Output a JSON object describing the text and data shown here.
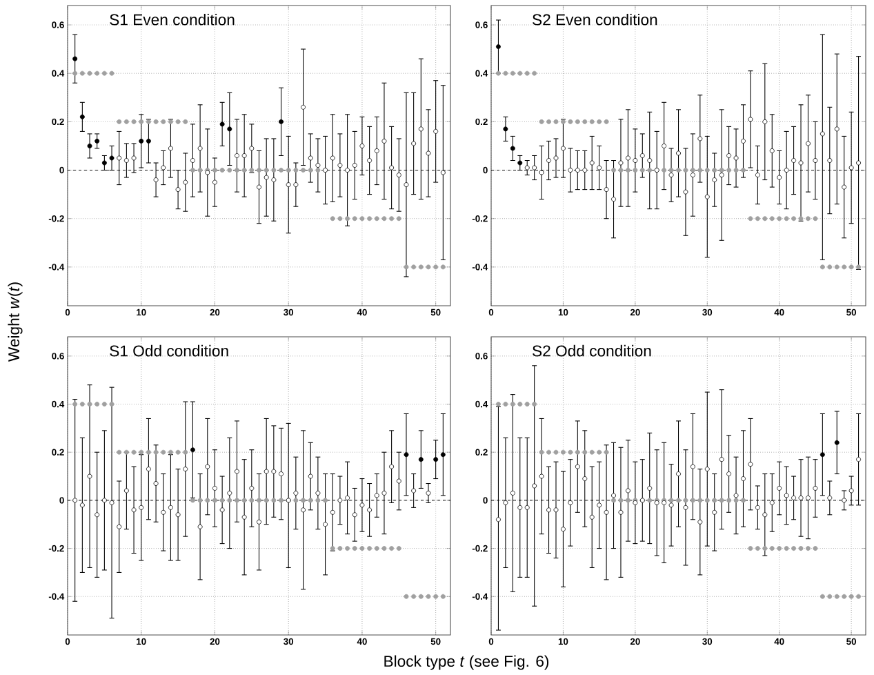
{
  "chart_data": [
    {
      "type": "scatter",
      "title": "S1 Even condition",
      "ylabel": "Weight *w*(*t*)",
      "xlim": [
        0,
        52
      ],
      "ylim": [
        -0.56,
        0.68
      ],
      "xticks": [
        0,
        10,
        20,
        30,
        40,
        50
      ],
      "yticks": [
        -0.4,
        -0.2,
        0,
        0.2,
        0.4,
        0.6
      ],
      "grid": true,
      "marker": "circle",
      "ref_lines": [
        {
          "axis": "y",
          "value": 0,
          "line_style": "dashed",
          "color": "#000000"
        }
      ],
      "x": [
        1,
        2,
        3,
        4,
        5,
        6,
        7,
        8,
        9,
        10,
        11,
        12,
        13,
        14,
        15,
        16,
        17,
        18,
        19,
        20,
        21,
        22,
        23,
        24,
        25,
        26,
        27,
        28,
        29,
        30,
        31,
        32,
        33,
        34,
        35,
        36,
        37,
        38,
        39,
        40,
        41,
        42,
        43,
        44,
        45,
        46,
        47,
        48,
        49,
        50,
        51
      ],
      "series": [
        {
          "type": "scatter",
          "color": "#a0a0a0",
          "values": [
            0.4,
            0.4,
            0.4,
            0.4,
            0.4,
            0.4,
            0.2,
            0.2,
            0.2,
            0.2,
            0.2,
            0.2,
            0.2,
            0.2,
            0.2,
            0.2,
            0,
            0,
            0,
            0,
            0,
            0,
            0,
            0,
            0,
            0,
            0,
            0,
            0,
            0,
            0,
            0,
            0,
            0,
            0,
            -0.2,
            -0.2,
            -0.2,
            -0.2,
            -0.2,
            -0.2,
            -0.2,
            -0.2,
            -0.2,
            -0.2,
            -0.4,
            -0.4,
            -0.4,
            -0.4,
            -0.4,
            -0.4
          ]
        },
        {
          "type": "scatter",
          "values": [
            0.46,
            0.22,
            0.1,
            0.12,
            0.03,
            0.05,
            0.05,
            0.04,
            0.05,
            0.12,
            0.12,
            -0.04,
            0.01,
            0.09,
            -0.08,
            -0.05,
            0.04,
            0.09,
            -0.01,
            -0.05,
            0.19,
            0.17,
            0.06,
            0.06,
            0.09,
            -0.07,
            -0.03,
            -0.04,
            0.2,
            -0.06,
            -0.06,
            0.26,
            0.05,
            0.02,
            0.0,
            0.05,
            0.02,
            0.0,
            0.02,
            0.1,
            0.04,
            0.08,
            0.12,
            0.01,
            -0.02,
            -0.06,
            0.11,
            0.17,
            0.07,
            0.16,
            -0.01
          ],
          "errors": [
            0.1,
            0.06,
            0.05,
            0.03,
            0.03,
            0.05,
            0.11,
            0.07,
            0.06,
            0.11,
            0.09,
            0.07,
            0.07,
            0.12,
            0.08,
            0.12,
            0.15,
            0.18,
            0.18,
            0.1,
            0.09,
            0.15,
            0.15,
            0.17,
            0.1,
            0.15,
            0.16,
            0.17,
            0.14,
            0.2,
            0.09,
            0.24,
            0.1,
            0.11,
            0.14,
            0.18,
            0.13,
            0.23,
            0.14,
            0.12,
            0.14,
            0.14,
            0.24,
            0.17,
            0.15,
            0.38,
            0.21,
            0.29,
            0.18,
            0.21,
            0.36
          ],
          "colors": [
            "#000000",
            "#000000",
            "#000000",
            "#000000",
            "#000000",
            "#000000",
            "#ffffff",
            "#ffffff",
            "#ffffff",
            "#000000",
            "#000000",
            "#ffffff",
            "#ffffff",
            "#ffffff",
            "#ffffff",
            "#ffffff",
            "#ffffff",
            "#ffffff",
            "#ffffff",
            "#ffffff",
            "#000000",
            "#000000",
            "#ffffff",
            "#ffffff",
            "#ffffff",
            "#ffffff",
            "#ffffff",
            "#ffffff",
            "#000000",
            "#ffffff",
            "#ffffff",
            "#ffffff",
            "#ffffff",
            "#ffffff",
            "#ffffff",
            "#ffffff",
            "#ffffff",
            "#ffffff",
            "#ffffff",
            "#ffffff",
            "#ffffff",
            "#ffffff",
            "#ffffff",
            "#ffffff",
            "#ffffff",
            "#ffffff",
            "#ffffff",
            "#ffffff",
            "#ffffff",
            "#ffffff",
            "#ffffff"
          ]
        }
      ]
    },
    {
      "type": "scatter",
      "title": "S2 Even condition",
      "xlim": [
        0,
        52
      ],
      "ylim": [
        -0.56,
        0.68
      ],
      "xticks": [
        0,
        10,
        20,
        30,
        40,
        50
      ],
      "yticks": [
        -0.4,
        -0.2,
        0,
        0.2,
        0.4,
        0.6
      ],
      "grid": true,
      "marker": "circle",
      "ref_lines": [
        {
          "axis": "y",
          "value": 0,
          "line_style": "dashed",
          "color": "#000000"
        }
      ],
      "x": [
        1,
        2,
        3,
        4,
        5,
        6,
        7,
        8,
        9,
        10,
        11,
        12,
        13,
        14,
        15,
        16,
        17,
        18,
        19,
        20,
        21,
        22,
        23,
        24,
        25,
        26,
        27,
        28,
        29,
        30,
        31,
        32,
        33,
        34,
        35,
        36,
        37,
        38,
        39,
        40,
        41,
        42,
        43,
        44,
        45,
        46,
        47,
        48,
        49,
        50,
        51
      ],
      "series": [
        {
          "type": "scatter",
          "color": "#a0a0a0",
          "values": [
            0.4,
            0.4,
            0.4,
            0.4,
            0.4,
            0.4,
            0.2,
            0.2,
            0.2,
            0.2,
            0.2,
            0.2,
            0.2,
            0.2,
            0.2,
            0.2,
            0,
            0,
            0,
            0,
            0,
            0,
            0,
            0,
            0,
            0,
            0,
            0,
            0,
            0,
            0,
            0,
            0,
            0,
            0,
            -0.2,
            -0.2,
            -0.2,
            -0.2,
            -0.2,
            -0.2,
            -0.2,
            -0.2,
            -0.2,
            -0.2,
            -0.4,
            -0.4,
            -0.4,
            -0.4,
            -0.4,
            -0.4
          ]
        },
        {
          "type": "scatter",
          "values": [
            0.51,
            0.17,
            0.09,
            0.03,
            0.01,
            0.01,
            -0.01,
            0.04,
            0.05,
            0.09,
            0,
            0,
            0,
            0.03,
            0.01,
            -0.08,
            -0.12,
            0.03,
            0.05,
            0.04,
            0.06,
            0.04,
            0,
            0.1,
            -0.02,
            0.07,
            -0.09,
            -0.02,
            0.13,
            -0.11,
            -0.04,
            -0.02,
            0.06,
            0.05,
            0.12,
            0.21,
            -0.02,
            0.2,
            0.08,
            -0.03,
            0,
            0.04,
            0.03,
            0.11,
            0.04,
            0.15,
            0.04,
            0.17,
            -0.07,
            0.01,
            0.03
          ],
          "errors": [
            0.11,
            0.05,
            0.05,
            0.03,
            0.03,
            0.05,
            0.11,
            0.08,
            0.08,
            0.12,
            0.09,
            0.08,
            0.08,
            0.11,
            0.09,
            0.12,
            0.16,
            0.18,
            0.2,
            0.13,
            0.09,
            0.2,
            0.16,
            0.18,
            0.11,
            0.18,
            0.18,
            0.17,
            0.18,
            0.25,
            0.11,
            0.27,
            0.12,
            0.12,
            0.15,
            0.2,
            0.12,
            0.24,
            0.15,
            0.11,
            0.16,
            0.14,
            0.24,
            0.2,
            0.16,
            [
              -0.37,
              0.56
            ],
            0.22,
            0.31,
            0.21,
            0.23,
            [
              -0.41,
              0.47
            ]
          ],
          "colors": [
            "#000000",
            "#000000",
            "#000000",
            "#000000",
            "#ffffff",
            "#ffffff",
            "#ffffff",
            "#ffffff",
            "#ffffff",
            "#ffffff",
            "#ffffff",
            "#ffffff",
            "#ffffff",
            "#ffffff",
            "#ffffff",
            "#ffffff",
            "#ffffff",
            "#ffffff",
            "#ffffff",
            "#ffffff",
            "#ffffff",
            "#ffffff",
            "#ffffff",
            "#ffffff",
            "#ffffff",
            "#ffffff",
            "#ffffff",
            "#ffffff",
            "#ffffff",
            "#ffffff",
            "#ffffff",
            "#ffffff",
            "#ffffff",
            "#ffffff",
            "#ffffff",
            "#ffffff",
            "#ffffff",
            "#ffffff",
            "#ffffff",
            "#ffffff",
            "#ffffff",
            "#ffffff",
            "#ffffff",
            "#ffffff",
            "#ffffff",
            "#ffffff",
            "#ffffff",
            "#ffffff",
            "#ffffff",
            "#ffffff",
            "#ffffff"
          ]
        }
      ]
    },
    {
      "type": "scatter",
      "title": "S1 Odd condition",
      "xlabel": "Block type *t* (see Fig. 6)",
      "xlim": [
        0,
        52
      ],
      "ylim": [
        -0.56,
        0.68
      ],
      "xticks": [
        0,
        10,
        20,
        30,
        40,
        50
      ],
      "yticks": [
        -0.4,
        -0.2,
        0,
        0.2,
        0.4,
        0.6
      ],
      "grid": true,
      "marker": "circle",
      "ref_lines": [
        {
          "axis": "y",
          "value": 0,
          "line_style": "dashed",
          "color": "#000000"
        }
      ],
      "x": [
        1,
        2,
        3,
        4,
        5,
        6,
        7,
        8,
        9,
        10,
        11,
        12,
        13,
        14,
        15,
        16,
        17,
        18,
        19,
        20,
        21,
        22,
        23,
        24,
        25,
        26,
        27,
        28,
        29,
        30,
        31,
        32,
        33,
        34,
        35,
        36,
        37,
        38,
        39,
        40,
        41,
        42,
        43,
        44,
        45,
        46,
        47,
        48,
        49,
        50,
        51
      ],
      "series": [
        {
          "type": "scatter",
          "color": "#a0a0a0",
          "values": [
            0.4,
            0.4,
            0.4,
            0.4,
            0.4,
            0.4,
            0.2,
            0.2,
            0.2,
            0.2,
            0.2,
            0.2,
            0.2,
            0.2,
            0.2,
            0.2,
            0,
            0,
            0,
            0,
            0,
            0,
            0,
            0,
            0,
            0,
            0,
            0,
            0,
            0,
            0,
            0,
            0,
            0,
            0,
            -0.2,
            -0.2,
            -0.2,
            -0.2,
            -0.2,
            -0.2,
            -0.2,
            -0.2,
            -0.2,
            -0.2,
            -0.4,
            -0.4,
            -0.4,
            -0.4,
            -0.4,
            -0.4
          ]
        },
        {
          "type": "scatter",
          "values": [
            0.0,
            -0.02,
            0.1,
            -0.06,
            0.0,
            -0.01,
            -0.11,
            0.04,
            -0.04,
            -0.03,
            0.13,
            0.07,
            -0.05,
            -0.03,
            -0.06,
            0.13,
            0.21,
            -0.11,
            0.14,
            0.05,
            -0.04,
            0.03,
            0.12,
            -0.07,
            0.05,
            -0.09,
            0.12,
            0.12,
            0.11,
            0.0,
            0.03,
            -0.04,
            0.1,
            0.03,
            -0.1,
            -0.05,
            0.0,
            0.01,
            -0.06,
            -0.02,
            -0.04,
            0.02,
            0.03,
            0.14,
            0.08,
            0.19,
            0.04,
            0.17,
            0.03,
            0.17,
            0.19
          ],
          "errors": [
            0.42,
            0.28,
            0.38,
            0.26,
            0.29,
            0.48,
            0.19,
            0.16,
            0.18,
            0.22,
            0.21,
            0.16,
            0.16,
            0.22,
            0.19,
            0.28,
            0.2,
            0.22,
            0.2,
            0.16,
            0.14,
            0.23,
            0.21,
            0.24,
            0.16,
            0.2,
            0.22,
            0.19,
            0.19,
            [
              -0.28,
              0.32
            ],
            0.15,
            [
              -0.37,
              0.29
            ],
            0.14,
            0.15,
            0.21,
            0.16,
            0.1,
            0.15,
            0.11,
            0.11,
            0.11,
            0.09,
            0.17,
            0.15,
            0.12,
            0.17,
            0.07,
            0.12,
            0.04,
            0.08,
            0.17
          ],
          "colors": [
            "#ffffff",
            "#ffffff",
            "#ffffff",
            "#ffffff",
            "#ffffff",
            "#ffffff",
            "#ffffff",
            "#ffffff",
            "#ffffff",
            "#ffffff",
            "#ffffff",
            "#ffffff",
            "#ffffff",
            "#ffffff",
            "#ffffff",
            "#ffffff",
            "#000000",
            "#ffffff",
            "#ffffff",
            "#ffffff",
            "#ffffff",
            "#ffffff",
            "#ffffff",
            "#ffffff",
            "#ffffff",
            "#ffffff",
            "#ffffff",
            "#ffffff",
            "#ffffff",
            "#ffffff",
            "#ffffff",
            "#ffffff",
            "#ffffff",
            "#ffffff",
            "#ffffff",
            "#ffffff",
            "#ffffff",
            "#ffffff",
            "#ffffff",
            "#ffffff",
            "#ffffff",
            "#ffffff",
            "#ffffff",
            "#ffffff",
            "#ffffff",
            "#000000",
            "#ffffff",
            "#000000",
            "#ffffff",
            "#000000",
            "#000000"
          ]
        }
      ]
    },
    {
      "type": "scatter",
      "title": "S2 Odd condition",
      "xlim": [
        0,
        52
      ],
      "ylim": [
        -0.56,
        0.68
      ],
      "xticks": [
        0,
        10,
        20,
        30,
        40,
        50
      ],
      "yticks": [
        -0.4,
        -0.2,
        0,
        0.2,
        0.4,
        0.6
      ],
      "grid": true,
      "marker": "circle",
      "ref_lines": [
        {
          "axis": "y",
          "value": 0,
          "line_style": "dashed",
          "color": "#000000"
        }
      ],
      "x": [
        1,
        2,
        3,
        4,
        5,
        6,
        7,
        8,
        9,
        10,
        11,
        12,
        13,
        14,
        15,
        16,
        17,
        18,
        19,
        20,
        21,
        22,
        23,
        24,
        25,
        26,
        27,
        28,
        29,
        30,
        31,
        32,
        33,
        34,
        35,
        36,
        37,
        38,
        39,
        40,
        41,
        42,
        43,
        44,
        45,
        46,
        47,
        48,
        49,
        50,
        51
      ],
      "series": [
        {
          "type": "scatter",
          "color": "#a0a0a0",
          "values": [
            0.4,
            0.4,
            0.4,
            0.4,
            0.4,
            0.4,
            0.2,
            0.2,
            0.2,
            0.2,
            0.2,
            0.2,
            0.2,
            0.2,
            0.2,
            0.2,
            0,
            0,
            0,
            0,
            0,
            0,
            0,
            0,
            0,
            0,
            0,
            0,
            0,
            0,
            0,
            0,
            0,
            0,
            0,
            -0.2,
            -0.2,
            -0.2,
            -0.2,
            -0.2,
            -0.2,
            -0.2,
            -0.2,
            -0.2,
            -0.2,
            -0.4,
            -0.4,
            -0.4,
            -0.4,
            -0.4,
            -0.4
          ]
        },
        {
          "type": "scatter",
          "values": [
            -0.08,
            -0.01,
            0.03,
            -0.03,
            -0.03,
            0.06,
            0.1,
            -0.04,
            -0.04,
            -0.12,
            -0.01,
            0.14,
            0.09,
            -0.07,
            -0.02,
            -0.05,
            0.02,
            -0.05,
            0.04,
            -0.01,
            0.0,
            0.05,
            -0.01,
            -0.01,
            -0.02,
            0.11,
            -0.03,
            0.14,
            -0.09,
            0.13,
            -0.05,
            0.17,
            0.11,
            0.02,
            0.09,
            0.15,
            -0.03,
            -0.06,
            -0.01,
            0.05,
            0.02,
            0.01,
            0.01,
            0.01,
            0.05,
            0.19,
            0.01,
            0.24,
            0.0,
            0.04,
            0.17
          ],
          "errors": [
            [
              -0.54,
              0.39
            ],
            0.27,
            0.41,
            0.29,
            0.29,
            0.5,
            0.24,
            0.18,
            0.2,
            0.24,
            0.18,
            0.19,
            0.2,
            0.21,
            0.18,
            0.28,
            0.22,
            0.27,
            0.21,
            0.17,
            0.17,
            0.23,
            0.22,
            0.25,
            0.17,
            0.22,
            0.24,
            0.22,
            0.22,
            0.32,
            0.16,
            0.29,
            0.16,
            0.16,
            0.2,
            0.19,
            0.09,
            0.17,
            0.12,
            0.11,
            0.12,
            0.09,
            0.16,
            0.17,
            0.12,
            0.17,
            0.07,
            0.13,
            0.04,
            0.06,
            0.19
          ],
          "colors": [
            "#ffffff",
            "#ffffff",
            "#ffffff",
            "#ffffff",
            "#ffffff",
            "#ffffff",
            "#ffffff",
            "#ffffff",
            "#ffffff",
            "#ffffff",
            "#ffffff",
            "#ffffff",
            "#ffffff",
            "#ffffff",
            "#ffffff",
            "#ffffff",
            "#ffffff",
            "#ffffff",
            "#ffffff",
            "#ffffff",
            "#ffffff",
            "#ffffff",
            "#ffffff",
            "#ffffff",
            "#ffffff",
            "#ffffff",
            "#ffffff",
            "#ffffff",
            "#ffffff",
            "#ffffff",
            "#ffffff",
            "#ffffff",
            "#ffffff",
            "#ffffff",
            "#ffffff",
            "#ffffff",
            "#ffffff",
            "#ffffff",
            "#ffffff",
            "#ffffff",
            "#ffffff",
            "#ffffff",
            "#ffffff",
            "#ffffff",
            "#ffffff",
            "#000000",
            "#ffffff",
            "#000000",
            "#ffffff",
            "#ffffff",
            "#ffffff"
          ]
        }
      ]
    }
  ]
}
